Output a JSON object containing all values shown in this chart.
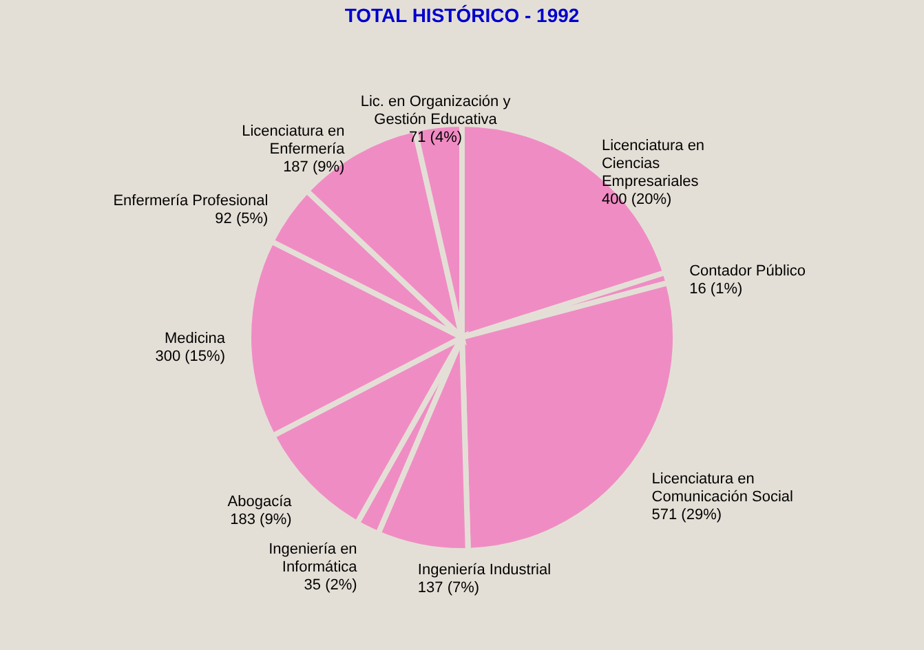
{
  "chart_data": {
    "type": "pie",
    "title": "TOTAL HISTÓRICO - 1992",
    "categories": [
      "Licenciatura en\nCiencias\nEmpresariales",
      "Contador Público",
      "Licenciatura en\nComunicación Social",
      "Ingeniería Industrial",
      "Ingeniería en\nInformática",
      "Abogacía",
      "Medicina",
      "Enfermería Profesional",
      "Licenciatura en\nEnfermería",
      "Lic. en Organización y\nGestión Educativa"
    ],
    "values": [
      400,
      16,
      571,
      137,
      35,
      183,
      300,
      92,
      187,
      71
    ],
    "value_labels": [
      "400 (20%)",
      "16 (1%)",
      "571 (29%)",
      "137 (7%)",
      "35 (2%)",
      "183 (9%)",
      "300 (15%)",
      "92 (5%)",
      "187 (9%)",
      "71 (4%)"
    ],
    "colors": [
      "#f08cc4",
      "#f08cc4",
      "#f08cc4",
      "#f08cc4",
      "#f08cc4",
      "#f08cc4",
      "#f08cc4",
      "#f08cc4",
      "#f08cc4",
      "#f08cc4"
    ],
    "legend": false
  }
}
